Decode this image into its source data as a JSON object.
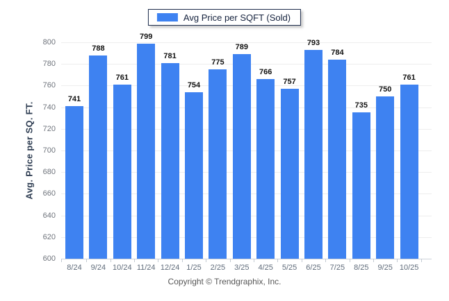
{
  "legend": {
    "label": "Avg Price per SQFT (Sold)"
  },
  "footer": {
    "text": "Copyright © Trendgraphix, Inc."
  },
  "chart_data": {
    "type": "bar",
    "title": "",
    "xlabel": "",
    "ylabel": "Avg. Price per SQ. FT.",
    "categories": [
      "8/24",
      "9/24",
      "10/24",
      "11/24",
      "12/24",
      "1/25",
      "2/25",
      "3/25",
      "4/25",
      "5/25",
      "6/25",
      "7/25",
      "8/25",
      "9/25",
      "10/25"
    ],
    "values": [
      741,
      788,
      761,
      799,
      781,
      754,
      775,
      789,
      766,
      757,
      793,
      784,
      735,
      750,
      761
    ],
    "ylim": [
      600,
      800
    ],
    "ystep": 20,
    "grid": "horizontal",
    "legend_position": "top-center",
    "value_labels": "above-bars",
    "colors": {
      "bar": "#3e82f1",
      "gridline": "#ededed",
      "axis_line": "#cdd2d8",
      "tick_text": "#6e737b",
      "value_text": "#111111",
      "ylabel_text": "#2e3d52",
      "legend_border": "#1b2a4a",
      "footer_text": "#565656"
    }
  }
}
